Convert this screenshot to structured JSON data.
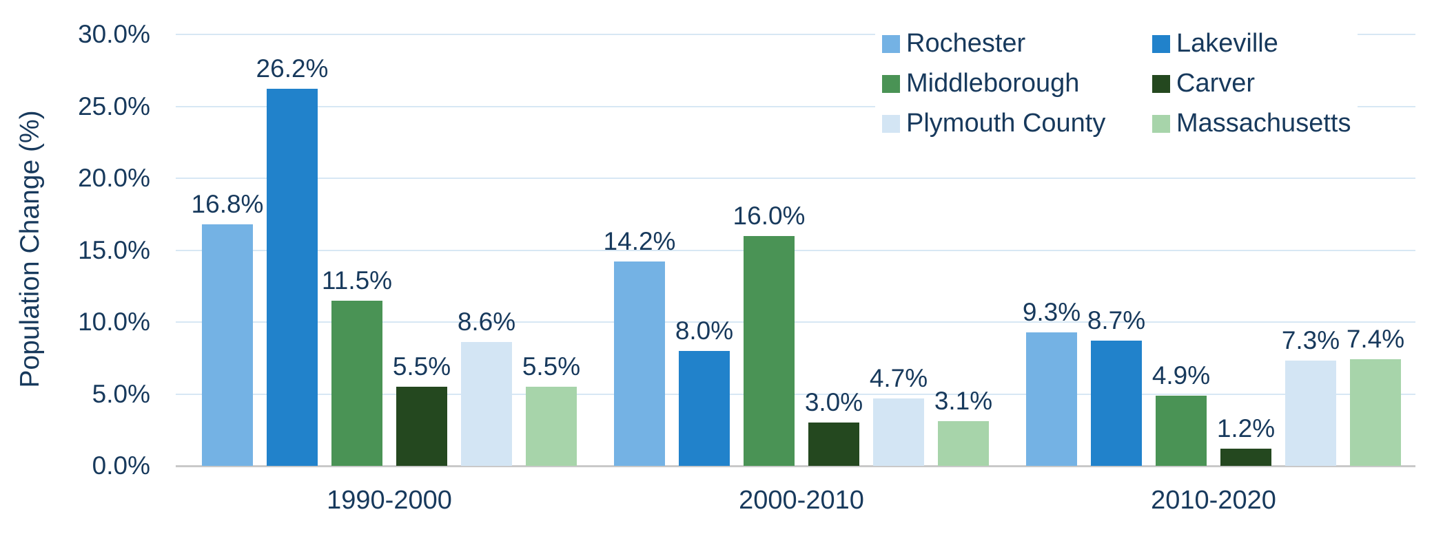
{
  "chart_data": {
    "type": "bar",
    "title": "",
    "xlabel": "",
    "ylabel": "Population Change (%)",
    "categories": [
      "1990-2000",
      "2000-2010",
      "2010-2020"
    ],
    "series": [
      {
        "name": "Rochester",
        "color": "#74b2e4",
        "values": [
          16.8,
          14.2,
          9.3
        ]
      },
      {
        "name": "Lakeville",
        "color": "#2182cb",
        "values": [
          26.2,
          8.0,
          8.7
        ]
      },
      {
        "name": "Middleborough",
        "color": "#4a9355",
        "values": [
          11.5,
          16.0,
          4.9
        ]
      },
      {
        "name": "Carver",
        "color": "#24481f",
        "values": [
          5.5,
          3.0,
          1.2
        ]
      },
      {
        "name": "Plymouth County",
        "color": "#d3e5f4",
        "values": [
          8.6,
          4.7,
          7.3
        ]
      },
      {
        "name": "Massachusetts",
        "color": "#a7d4aa",
        "values": [
          5.5,
          3.1,
          7.4
        ]
      }
    ],
    "bar_value_labels": [
      [
        "16.8%",
        "14.2%",
        "9.3%"
      ],
      [
        "26.2%",
        "8.0%",
        "8.7%"
      ],
      [
        "11.5%",
        "16.0%",
        "4.9%"
      ],
      [
        "5.5%",
        "3.0%",
        "1.2%"
      ],
      [
        "8.6%",
        "4.7%",
        "7.3%"
      ],
      [
        "5.5%",
        "3.1%",
        "7.4%"
      ]
    ],
    "y_ticks": [
      "0.0%",
      "5.0%",
      "10.0%",
      "15.0%",
      "20.0%",
      "25.0%",
      "30.0%"
    ],
    "ylim": [
      0,
      30
    ],
    "y_tick_step": 5,
    "grid": true,
    "legend_position": "top-right"
  },
  "colors": {
    "text": "#17395c",
    "gridline": "#d7e7f4",
    "axis_line": "#c9c9c9",
    "background": "#ffffff"
  }
}
